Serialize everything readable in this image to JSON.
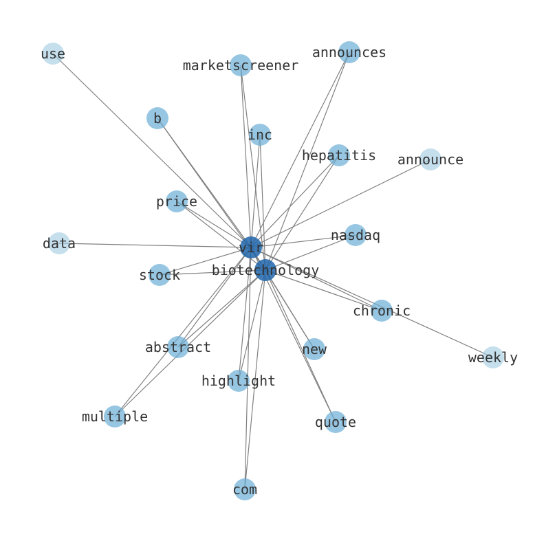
{
  "diagram": {
    "type": "network",
    "colors": {
      "hub": "#2166ac",
      "node": "#6baed6",
      "light": "#9ecae1",
      "edge": "#808080"
    },
    "nodes": [
      {
        "id": "use",
        "tone": "light"
      },
      {
        "id": "marketscreener",
        "tone": "node"
      },
      {
        "id": "announces",
        "tone": "node"
      },
      {
        "id": "b",
        "tone": "node"
      },
      {
        "id": "inc",
        "tone": "node"
      },
      {
        "id": "hepatitis",
        "tone": "node"
      },
      {
        "id": "announce",
        "tone": "light"
      },
      {
        "id": "price",
        "tone": "node"
      },
      {
        "id": "data",
        "tone": "light"
      },
      {
        "id": "vir",
        "tone": "hub"
      },
      {
        "id": "nasdaq",
        "tone": "node"
      },
      {
        "id": "biotechnology",
        "tone": "hub"
      },
      {
        "id": "stock",
        "tone": "node"
      },
      {
        "id": "chronic",
        "tone": "node"
      },
      {
        "id": "abstract",
        "tone": "node"
      },
      {
        "id": "new",
        "tone": "node"
      },
      {
        "id": "weekly",
        "tone": "light"
      },
      {
        "id": "highlight",
        "tone": "node"
      },
      {
        "id": "multiple",
        "tone": "node"
      },
      {
        "id": "quote",
        "tone": "node"
      },
      {
        "id": "com",
        "tone": "node"
      }
    ],
    "edges": [
      [
        "vir",
        "biotechnology"
      ],
      [
        "vir",
        "use"
      ],
      [
        "vir",
        "marketscreener"
      ],
      [
        "vir",
        "announces"
      ],
      [
        "vir",
        "b"
      ],
      [
        "vir",
        "inc"
      ],
      [
        "vir",
        "hepatitis"
      ],
      [
        "vir",
        "announce"
      ],
      [
        "vir",
        "price"
      ],
      [
        "vir",
        "data"
      ],
      [
        "vir",
        "nasdaq"
      ],
      [
        "vir",
        "stock"
      ],
      [
        "vir",
        "chronic"
      ],
      [
        "vir",
        "abstract"
      ],
      [
        "vir",
        "new"
      ],
      [
        "vir",
        "weekly"
      ],
      [
        "vir",
        "highlight"
      ],
      [
        "vir",
        "multiple"
      ],
      [
        "vir",
        "quote"
      ],
      [
        "vir",
        "com"
      ],
      [
        "biotechnology",
        "marketscreener"
      ],
      [
        "biotechnology",
        "announces"
      ],
      [
        "biotechnology",
        "b"
      ],
      [
        "biotechnology",
        "inc"
      ],
      [
        "biotechnology",
        "hepatitis"
      ],
      [
        "biotechnology",
        "price"
      ],
      [
        "biotechnology",
        "nasdaq"
      ],
      [
        "biotechnology",
        "stock"
      ],
      [
        "biotechnology",
        "chronic"
      ],
      [
        "biotechnology",
        "abstract"
      ],
      [
        "biotechnology",
        "new"
      ],
      [
        "biotechnology",
        "highlight"
      ],
      [
        "biotechnology",
        "multiple"
      ],
      [
        "biotechnology",
        "quote"
      ],
      [
        "biotechnology",
        "com"
      ]
    ]
  }
}
